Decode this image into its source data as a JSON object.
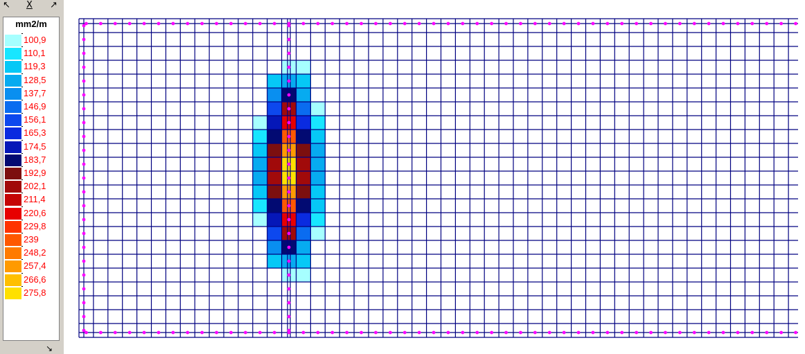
{
  "legend": {
    "unit": "mm2/m",
    "close_label": "X",
    "icons": {
      "top_left": "collapse-arrow-icon",
      "close": "close-icon",
      "top_right": "expand-arrow-icon",
      "bottom": "resize-arrow-icon"
    },
    "entries": [
      {
        "label": "100,9",
        "color": "#a6ffff"
      },
      {
        "label": "110,1",
        "color": "#18e6ff"
      },
      {
        "label": "119,3",
        "color": "#06c8f6"
      },
      {
        "label": "128,5",
        "color": "#07abf0"
      },
      {
        "label": "137,7",
        "color": "#098ff0"
      },
      {
        "label": "146,9",
        "color": "#0a6cf0"
      },
      {
        "label": "156,1",
        "color": "#0d48ee"
      },
      {
        "label": "165,3",
        "color": "#0a2be0"
      },
      {
        "label": "174,5",
        "color": "#0517b8"
      },
      {
        "label": "183,7",
        "color": "#020a72"
      },
      {
        "label": "192,9",
        "color": "#7c0f0f"
      },
      {
        "label": "202,1",
        "color": "#a10a0a"
      },
      {
        "label": "211,4",
        "color": "#c50505"
      },
      {
        "label": "220,6",
        "color": "#e70000"
      },
      {
        "label": "229,8",
        "color": "#ff3300"
      },
      {
        "label": "239",
        "color": "#ff5800"
      },
      {
        "label": "248,2",
        "color": "#ff7a00"
      },
      {
        "label": "257,4",
        "color": "#ff9a00"
      },
      {
        "label": "266,6",
        "color": "#ffbf00"
      },
      {
        "label": "275,8",
        "color": "#ffe000"
      }
    ]
  },
  "mesh": {
    "grid_color": "#000080",
    "node_color": "#ff00ff",
    "columns": 51,
    "rows": 23,
    "hot_column": 14,
    "heat_cells": [
      {
        "col": 14,
        "row": 3,
        "level": 0
      },
      {
        "col": 15,
        "row": 3,
        "level": 0
      },
      {
        "col": 13,
        "row": 4,
        "level": 2
      },
      {
        "col": 14,
        "row": 4,
        "level": 3
      },
      {
        "col": 15,
        "row": 4,
        "level": 2
      },
      {
        "col": 13,
        "row": 5,
        "level": 4
      },
      {
        "col": 14,
        "row": 5,
        "level": 9
      },
      {
        "col": 15,
        "row": 5,
        "level": 3
      },
      {
        "col": 13,
        "row": 6,
        "level": 6
      },
      {
        "col": 14,
        "row": 6,
        "level": 11
      },
      {
        "col": 15,
        "row": 6,
        "level": 5
      },
      {
        "col": 16,
        "row": 6,
        "level": 0
      },
      {
        "col": 12,
        "row": 7,
        "level": 0
      },
      {
        "col": 13,
        "row": 7,
        "level": 8
      },
      {
        "col": 14,
        "row": 7,
        "level": 13
      },
      {
        "col": 15,
        "row": 7,
        "level": 7
      },
      {
        "col": 16,
        "row": 7,
        "level": 1
      },
      {
        "col": 12,
        "row": 8,
        "level": 1
      },
      {
        "col": 13,
        "row": 8,
        "level": 9
      },
      {
        "col": 14,
        "row": 8,
        "level": 15
      },
      {
        "col": 15,
        "row": 8,
        "level": 9
      },
      {
        "col": 16,
        "row": 8,
        "level": 2
      },
      {
        "col": 12,
        "row": 9,
        "level": 2
      },
      {
        "col": 13,
        "row": 9,
        "level": 10
      },
      {
        "col": 14,
        "row": 9,
        "level": 17
      },
      {
        "col": 15,
        "row": 9,
        "level": 10
      },
      {
        "col": 16,
        "row": 9,
        "level": 3
      },
      {
        "col": 12,
        "row": 10,
        "level": 3
      },
      {
        "col": 13,
        "row": 10,
        "level": 11
      },
      {
        "col": 14,
        "row": 10,
        "level": 19
      },
      {
        "col": 15,
        "row": 10,
        "level": 11
      },
      {
        "col": 16,
        "row": 10,
        "level": 3
      },
      {
        "col": 12,
        "row": 11,
        "level": 3
      },
      {
        "col": 13,
        "row": 11,
        "level": 11
      },
      {
        "col": 14,
        "row": 11,
        "level": 19
      },
      {
        "col": 15,
        "row": 11,
        "level": 11
      },
      {
        "col": 16,
        "row": 11,
        "level": 3
      },
      {
        "col": 12,
        "row": 12,
        "level": 2
      },
      {
        "col": 13,
        "row": 12,
        "level": 10
      },
      {
        "col": 14,
        "row": 12,
        "level": 17
      },
      {
        "col": 15,
        "row": 12,
        "level": 10
      },
      {
        "col": 16,
        "row": 12,
        "level": 2
      },
      {
        "col": 12,
        "row": 13,
        "level": 1
      },
      {
        "col": 13,
        "row": 13,
        "level": 9
      },
      {
        "col": 14,
        "row": 13,
        "level": 15
      },
      {
        "col": 15,
        "row": 13,
        "level": 9
      },
      {
        "col": 16,
        "row": 13,
        "level": 2
      },
      {
        "col": 12,
        "row": 14,
        "level": 0
      },
      {
        "col": 13,
        "row": 14,
        "level": 8
      },
      {
        "col": 14,
        "row": 14,
        "level": 13
      },
      {
        "col": 15,
        "row": 14,
        "level": 7
      },
      {
        "col": 16,
        "row": 14,
        "level": 1
      },
      {
        "col": 13,
        "row": 15,
        "level": 6
      },
      {
        "col": 14,
        "row": 15,
        "level": 11
      },
      {
        "col": 15,
        "row": 15,
        "level": 5
      },
      {
        "col": 16,
        "row": 15,
        "level": 0
      },
      {
        "col": 13,
        "row": 16,
        "level": 4
      },
      {
        "col": 14,
        "row": 16,
        "level": 9
      },
      {
        "col": 15,
        "row": 16,
        "level": 3
      },
      {
        "col": 13,
        "row": 17,
        "level": 2
      },
      {
        "col": 14,
        "row": 17,
        "level": 3
      },
      {
        "col": 15,
        "row": 17,
        "level": 2
      },
      {
        "col": 14,
        "row": 18,
        "level": 0
      },
      {
        "col": 15,
        "row": 18,
        "level": 0
      }
    ]
  }
}
